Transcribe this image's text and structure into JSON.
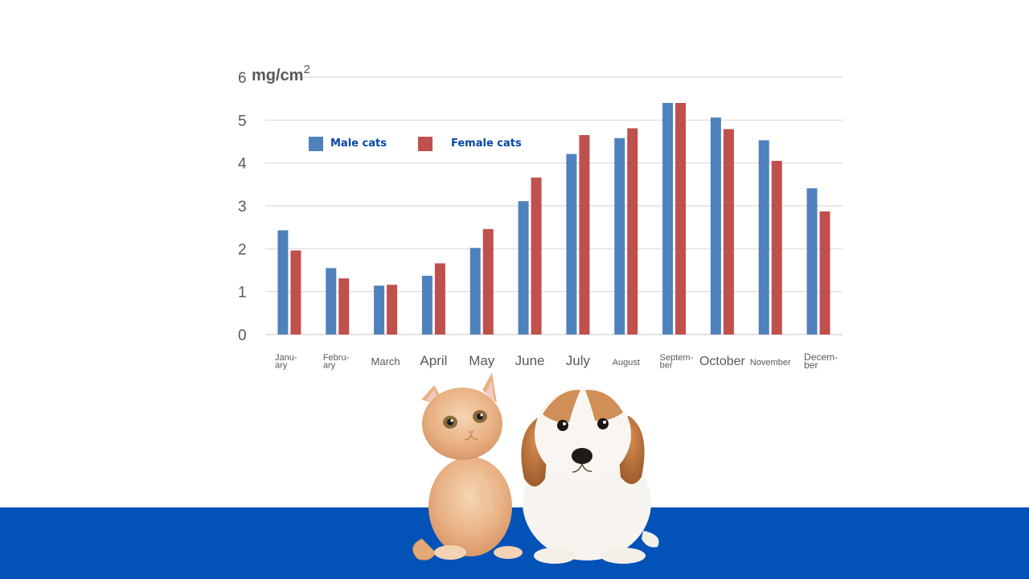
{
  "chart_data": {
    "type": "bar",
    "categories": [
      "Janu-|ary",
      "Febru-|ary",
      "March",
      "April",
      "May",
      "June",
      "July",
      "August",
      "Septem-|ber",
      "October",
      "November",
      "Decem-|ber"
    ],
    "series": [
      {
        "name": "Male cats",
        "values": [
          2.43,
          1.55,
          1.14,
          1.37,
          2.02,
          3.11,
          4.21,
          4.58,
          5.4,
          5.06,
          4.53,
          3.41
        ],
        "color": "#4f81bd"
      },
      {
        "name": "Female cats",
        "values": [
          1.96,
          1.31,
          1.16,
          1.66,
          2.46,
          3.66,
          4.65,
          4.81,
          5.4,
          4.79,
          4.05,
          2.87
        ],
        "color": "#c0504d"
      }
    ],
    "y_ticks": [
      "0",
      "1",
      "2",
      "3",
      "4",
      "5",
      "6"
    ],
    "ylim": [
      0,
      6
    ],
    "unit": {
      "base": "mg/cm",
      "exponent": "2"
    },
    "grid": true,
    "legend_position": "top-left",
    "legend_text_color": "#0347a5"
  },
  "colors": {
    "footer_band": "#0352b8",
    "gridline": "#d9d9d9",
    "tick_text": "#595959"
  },
  "illustration": {
    "subject": "kitten-and-puppy"
  }
}
